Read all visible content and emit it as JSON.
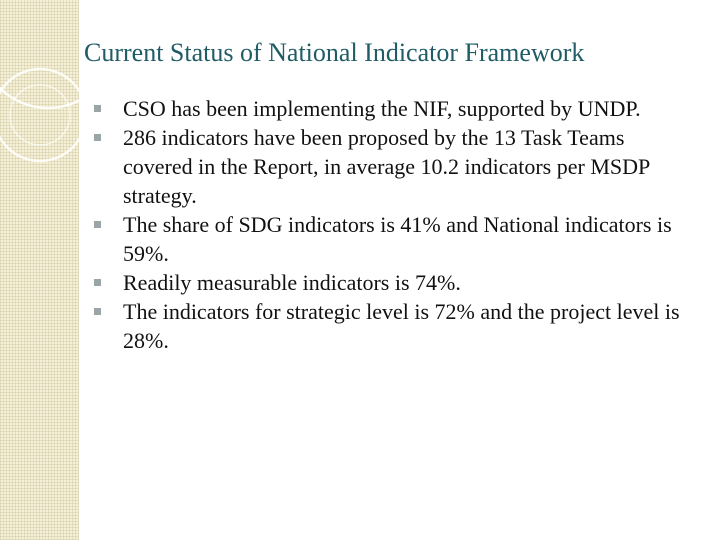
{
  "slide": {
    "title": "Current Status of National Indicator Framework",
    "bullets": [
      "CSO has been implementing the NIF, supported by UNDP.",
      "286 indicators have been proposed by the 13 Task Teams covered in the Report, in average 10.2 indicators per MSDP strategy.",
      "The share of SDG indicators is 41% and National indicators is 59%.",
      "Readily measurable indicators is 74%.",
      "The indicators for strategic level is 72% and the project level is 28%."
    ]
  },
  "colors": {
    "title": "#1f5c66",
    "text": "#111111",
    "band": "#f4f0d9",
    "bullet_marker": "#9aa5a8"
  },
  "icons": {
    "bullet_marker": "square-bullet-icon",
    "decoration": "ring-ornament-icon"
  }
}
